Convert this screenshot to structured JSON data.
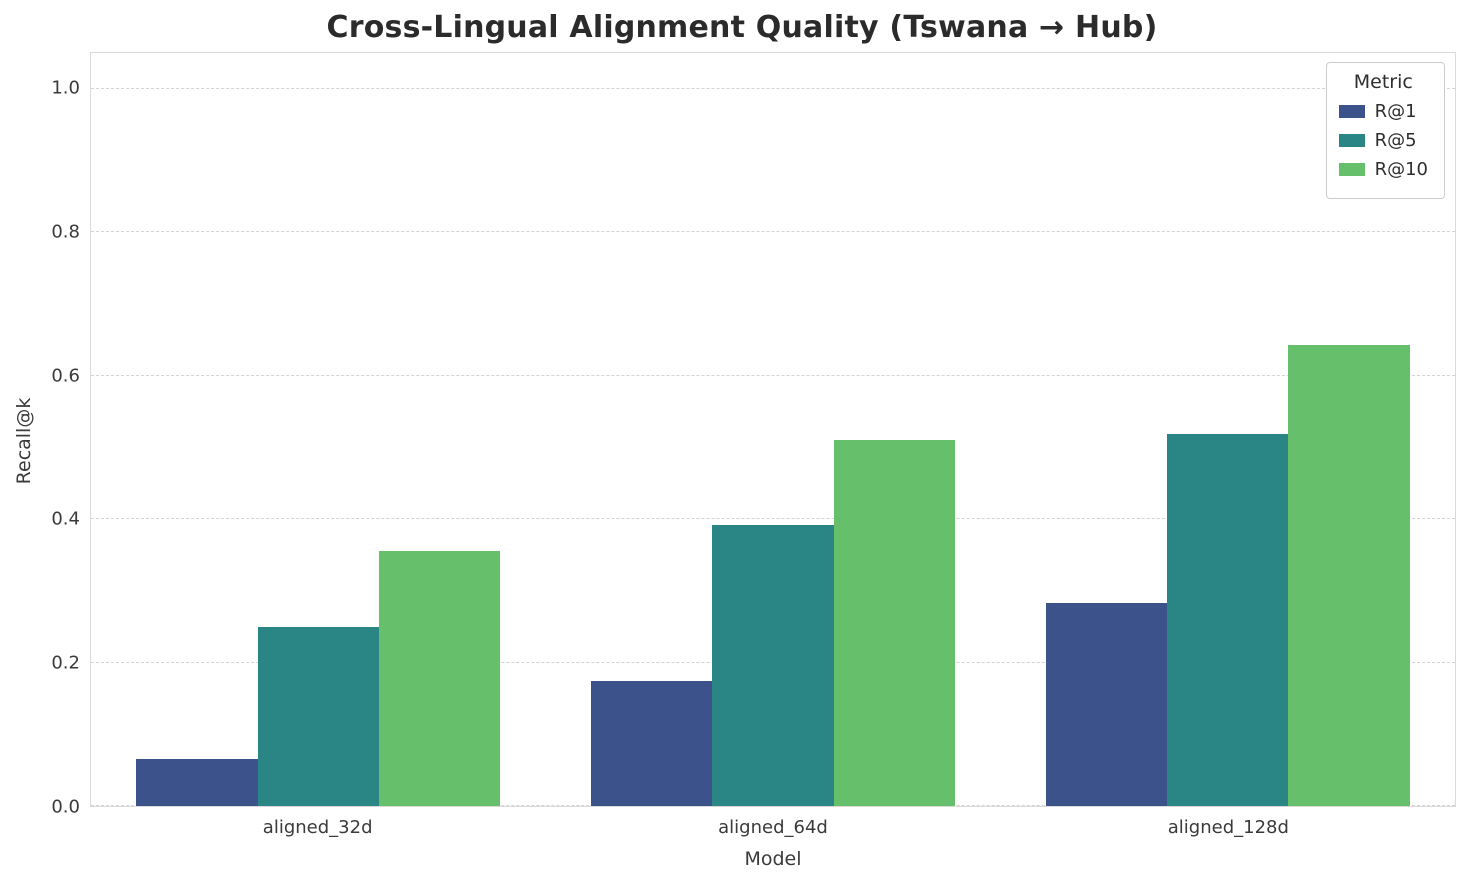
{
  "chart_data": {
    "type": "bar",
    "title": "Cross-Lingual Alignment Quality (Tswana → Hub)",
    "xlabel": "Model",
    "ylabel": "Recall@k",
    "legend_title": "Metric",
    "legend_position": "upper right",
    "grid": "horizontal-dashed",
    "categories": [
      "aligned_32d",
      "aligned_64d",
      "aligned_128d"
    ],
    "series": [
      {
        "name": "R@1",
        "color": "#3b528b",
        "values": [
          0.065,
          0.175,
          0.283
        ]
      },
      {
        "name": "R@5",
        "color": "#2a8685",
        "values": [
          0.249,
          0.392,
          0.519
        ]
      },
      {
        "name": "R@10",
        "color": "#66bf6b",
        "values": [
          0.356,
          0.51,
          0.643
        ]
      }
    ],
    "ylim": [
      0,
      1.05
    ],
    "yticks": [
      0.0,
      0.2,
      0.4,
      0.6,
      0.8,
      1.0
    ]
  }
}
